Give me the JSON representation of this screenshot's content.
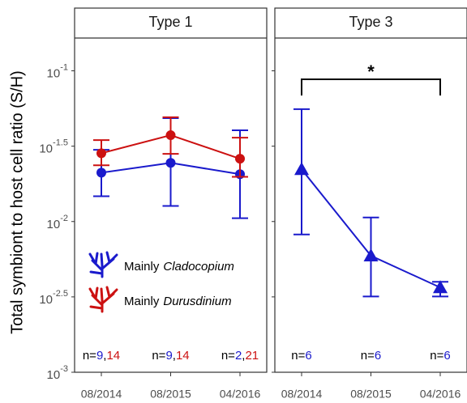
{
  "chart_data": [
    {
      "type": "line",
      "title": "Type 1",
      "y_label": "Total symbiont to host cell ratio (S/H)",
      "log_y": true,
      "marker": "circle",
      "legend_prefix": "Mainly",
      "categories": [
        "08/2014",
        "08/2015",
        "04/2016"
      ],
      "series": [
        {
          "name": "Cladocopium",
          "color": "#1a1acc",
          "values": [
            0.0211,
            0.0245,
            0.0206
          ],
          "lower": [
            0.01472,
            0.01268,
            0.01052
          ],
          "upper": [
            0.0299,
            0.0485,
            0.0403
          ]
        },
        {
          "name": "Durusdinium",
          "color": "#cc1111",
          "values": [
            0.0284,
            0.0374,
            0.0261
          ],
          "lower": [
            0.0236,
            0.0281,
            0.0198
          ],
          "upper": [
            0.0347,
            0.0492,
            0.036
          ]
        }
      ],
      "n_prefix": "n=",
      "n_separator": ",",
      "n": [
        [
          9,
          14
        ],
        [
          9,
          14
        ],
        [
          2,
          21
        ]
      ],
      "ylim": [
        0.001,
        0.165
      ],
      "yticks": [
        {
          "value": 0.1,
          "label": "10",
          "exponent": "-1"
        },
        {
          "value": 0.0316228,
          "label": "10",
          "exponent": "-1.5"
        },
        {
          "value": 0.01,
          "label": "10",
          "exponent": "-2"
        },
        {
          "value": 0.00316228,
          "label": "10",
          "exponent": "-2.5"
        },
        {
          "value": 0.001,
          "label": "10",
          "exponent": "-3"
        }
      ]
    },
    {
      "type": "line",
      "title": "Type 3",
      "log_y": true,
      "marker": "triangle",
      "categories": [
        "08/2014",
        "08/2015",
        "04/2016"
      ],
      "series": [
        {
          "color": "#1a1acc",
          "values": [
            0.0222,
            0.00593,
            0.00365
          ],
          "lower": [
            0.0082,
            0.00318,
            0.00318
          ],
          "upper": [
            0.0557,
            0.01064,
            0.00398
          ]
        }
      ],
      "n_prefix": "n=",
      "n": [
        [
          6
        ],
        [
          6
        ],
        [
          6
        ]
      ],
      "significance": {
        "text": "*",
        "from": 0,
        "to": 2
      },
      "ylim": [
        0.001,
        0.165
      ],
      "yticks": [
        0.1,
        0.0316228,
        0.01,
        0.00316228,
        0.001
      ]
    }
  ]
}
